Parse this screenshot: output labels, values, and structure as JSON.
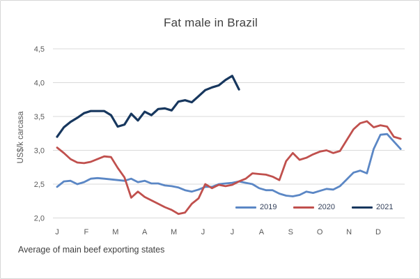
{
  "window": {
    "background": "#ffffff",
    "border_color": "#d6d6d6"
  },
  "chart_data": {
    "type": "line",
    "title": "Fat male in Brazil",
    "ylabel": "US$/k carcasa",
    "caption": "Average of main beef exporting states",
    "x_unit": "weeks (weekly price data, Jan–Dec)",
    "categories_months": [
      "J",
      "F",
      "M",
      "A",
      "M",
      "J",
      "J",
      "A",
      "S",
      "O",
      "N",
      "D"
    ],
    "y_ticks": [
      {
        "label": "4,5",
        "value": 4.5
      },
      {
        "label": "4,0",
        "value": 4.0
      },
      {
        "label": "3,5",
        "value": 3.5
      },
      {
        "label": "3,0",
        "value": 3.0
      },
      {
        "label": "2,5",
        "value": 2.5
      },
      {
        "label": "2,0",
        "value": 2.0
      }
    ],
    "ylim": [
      2.0,
      4.5
    ],
    "grid": true,
    "gridline_color": "#d9d9d9",
    "legend_position": "bottom-right-inside",
    "series": [
      {
        "name": "2019",
        "color": "#5B87C5",
        "values": [
          2.46,
          2.54,
          2.55,
          2.5,
          2.53,
          2.58,
          2.59,
          2.58,
          2.57,
          2.56,
          2.55,
          2.58,
          2.53,
          2.55,
          2.51,
          2.51,
          2.48,
          2.47,
          2.45,
          2.41,
          2.39,
          2.42,
          2.46,
          2.46,
          2.5,
          2.51,
          2.52,
          2.54,
          2.52,
          2.5,
          2.44,
          2.41,
          2.41,
          2.36,
          2.33,
          2.32,
          2.34,
          2.39,
          2.37,
          2.4,
          2.43,
          2.42,
          2.47,
          2.57,
          2.67,
          2.7,
          2.66,
          3.02,
          3.23,
          3.24,
          3.13,
          3.02
        ]
      },
      {
        "name": "2020",
        "color": "#C0504D",
        "values": [
          3.04,
          2.96,
          2.87,
          2.82,
          2.81,
          2.83,
          2.87,
          2.91,
          2.9,
          2.74,
          2.6,
          2.3,
          2.39,
          2.31,
          2.26,
          2.21,
          2.16,
          2.12,
          2.06,
          2.08,
          2.21,
          2.29,
          2.5,
          2.44,
          2.49,
          2.47,
          2.49,
          2.54,
          2.58,
          2.66,
          2.65,
          2.64,
          2.61,
          2.56,
          2.84,
          2.96,
          2.86,
          2.89,
          2.94,
          2.98,
          3.0,
          2.96,
          2.99,
          3.15,
          3.31,
          3.4,
          3.43,
          3.34,
          3.37,
          3.35,
          3.2,
          3.17
        ]
      },
      {
        "name": "2021",
        "color": "#17375E",
        "values": [
          3.2,
          3.34,
          3.42,
          3.48,
          3.55,
          3.58,
          3.58,
          3.58,
          3.52,
          3.35,
          3.38,
          3.54,
          3.44,
          3.57,
          3.52,
          3.61,
          3.62,
          3.59,
          3.72,
          3.74,
          3.71,
          3.8,
          3.89,
          3.93,
          3.96,
          4.04,
          4.1,
          3.9
        ]
      }
    ]
  }
}
